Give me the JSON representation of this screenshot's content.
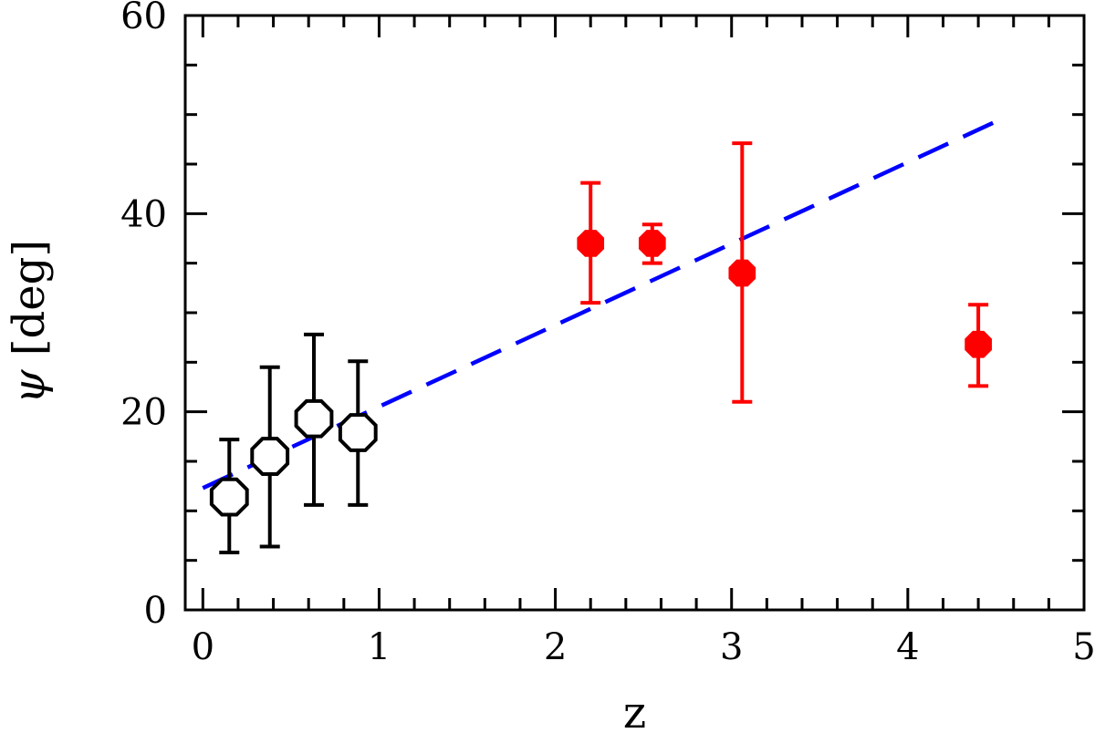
{
  "chart_data": {
    "type": "scatter",
    "xlabel": "z",
    "ylabel_symbol": "ψ",
    "ylabel_unit": "[deg]",
    "xlim": [
      -0.1,
      5
    ],
    "ylim": [
      0,
      60
    ],
    "x_major_ticks": [
      0,
      1,
      2,
      3,
      4,
      5
    ],
    "x_tick_labels": [
      "0",
      "1",
      "2",
      "3",
      "4",
      "5"
    ],
    "x_minor_step": 0.2,
    "y_major_ticks": [
      0,
      20,
      40,
      60
    ],
    "y_tick_labels": [
      "0",
      "20",
      "40",
      "60"
    ],
    "y_minor_step": 5,
    "series": [
      {
        "marker": "open-octagon",
        "color": "#000000",
        "points": [
          {
            "x": 0.15,
            "y": 11.4,
            "ylow": 5.8,
            "yhigh": 17.2
          },
          {
            "x": 0.38,
            "y": 15.5,
            "ylow": 6.4,
            "yhigh": 24.5
          },
          {
            "x": 0.63,
            "y": 19.3,
            "ylow": 10.6,
            "yhigh": 27.8
          },
          {
            "x": 0.88,
            "y": 17.9,
            "ylow": 10.6,
            "yhigh": 25.1
          }
        ]
      },
      {
        "marker": "filled-octagon",
        "color": "#ff0000",
        "points": [
          {
            "x": 2.2,
            "y": 37.0,
            "ylow": 31.0,
            "yhigh": 43.1
          },
          {
            "x": 2.55,
            "y": 37.0,
            "ylow": 35.0,
            "yhigh": 38.9
          },
          {
            "x": 3.06,
            "y": 34.0,
            "ylow": 21.0,
            "yhigh": 47.1
          },
          {
            "x": 4.4,
            "y": 26.8,
            "ylow": 22.6,
            "yhigh": 30.8
          }
        ]
      }
    ],
    "fit_line": {
      "style": "dashed",
      "color": "#0000ff",
      "x": [
        0.0,
        4.5
      ],
      "y": [
        12.3,
        49.3
      ]
    }
  }
}
